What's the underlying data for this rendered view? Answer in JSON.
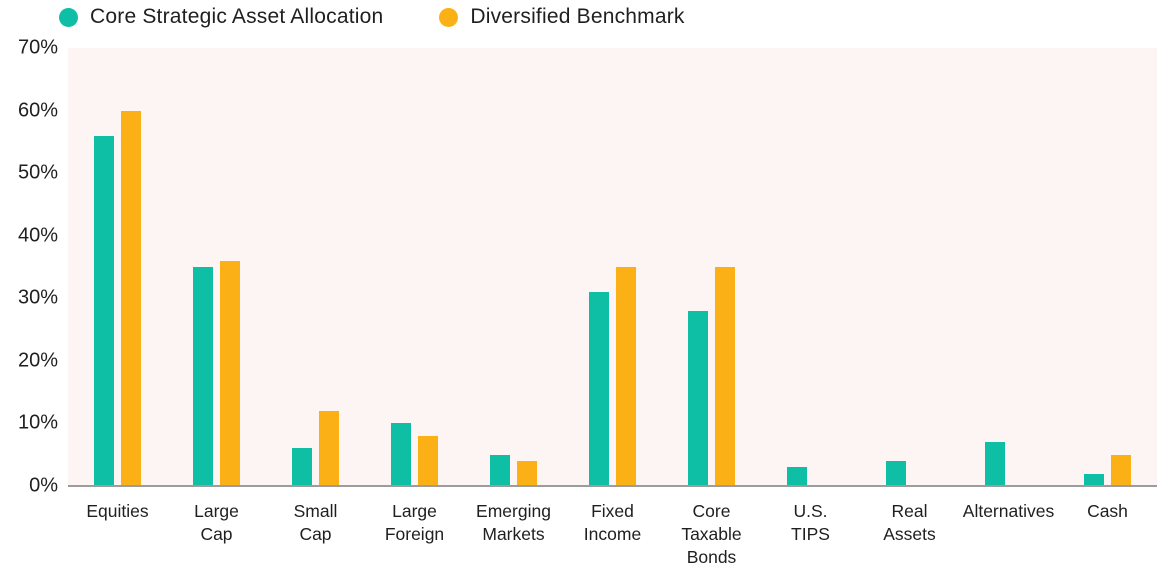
{
  "legend": {
    "items": [
      {
        "label": "Core Strategic Asset Allocation",
        "color": "#0EBFA5"
      },
      {
        "label": "Diversified Benchmark",
        "color": "#FBB116"
      }
    ]
  },
  "chart_data": {
    "type": "bar",
    "title": "",
    "xlabel": "",
    "ylabel": "",
    "categories": [
      "Equities",
      "Large Cap",
      "Small Cap",
      "Large Foreign",
      "Emerging Markets",
      "Fixed Income",
      "Core Taxable Bonds",
      "U.S. TIPS",
      "Real Assets",
      "Alternatives",
      "Cash"
    ],
    "category_label_lines": [
      "Equities",
      "Large\nCap",
      "Small\nCap",
      "Large\nForeign",
      "Emerging\nMarkets",
      "Fixed\nIncome",
      "Core\nTaxable\nBonds",
      "U.S.\nTIPS",
      "Real\nAssets",
      "Alternatives",
      "Cash"
    ],
    "series": [
      {
        "name": "Core Strategic Asset Allocation",
        "color": "#0EBFA5",
        "values": [
          56,
          35,
          6,
          10,
          5,
          31,
          28,
          3,
          4,
          7,
          2
        ]
      },
      {
        "name": "Diversified Benchmark",
        "color": "#FBB116",
        "values": [
          60,
          36,
          12,
          8,
          4,
          35,
          35,
          0,
          0,
          0,
          5
        ]
      }
    ],
    "ylim": [
      0,
      70
    ],
    "ytick_step": 10,
    "yticks": [
      "70%",
      "60%",
      "50%",
      "40%",
      "30%",
      "20%",
      "10%",
      "0%"
    ],
    "grid": false,
    "legend_position": "top-left",
    "plot_background": "#FCF5F3",
    "axis_line_color": "#9C9C9C",
    "text_color": "#1F1F1F"
  }
}
